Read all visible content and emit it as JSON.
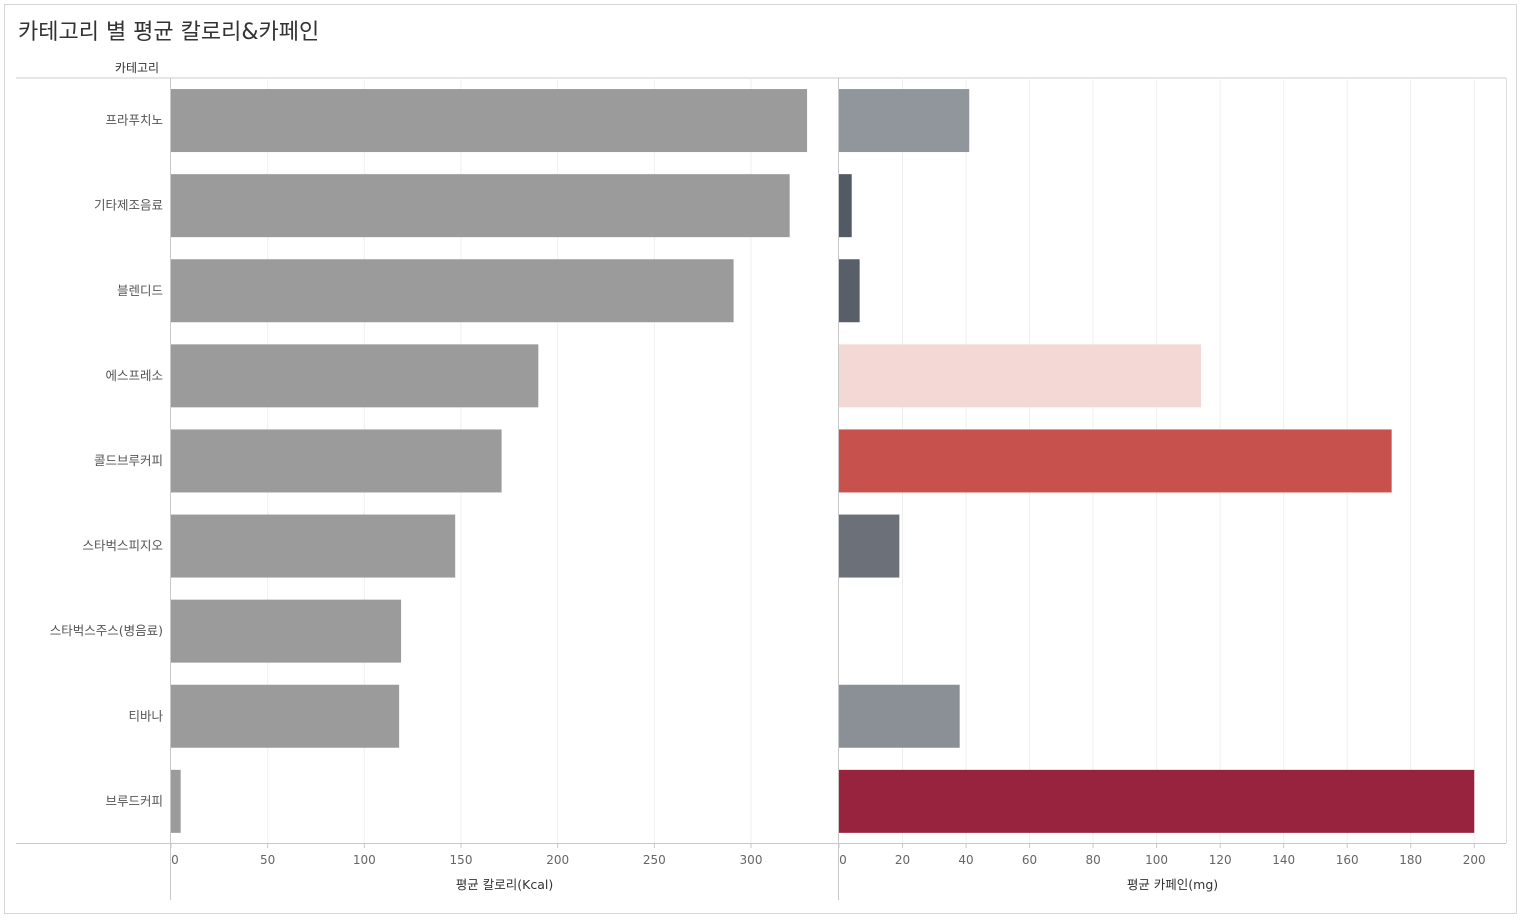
{
  "title": "카테고리 별 평균 칼로리&카페인",
  "chart_data": {
    "type": "bar",
    "orientation": "horizontal",
    "row_header": "카테고리",
    "categories": [
      "프라푸치노",
      "기타제조음료",
      "블렌디드",
      "에스프레소",
      "콜드브루커피",
      "스타벅스피지오",
      "스타벅스주스(병음료)",
      "티바나",
      "브루드커피"
    ],
    "panels": [
      {
        "name": "calories",
        "xlabel": "평균 칼로리(Kcal)",
        "xlim": [
          0,
          345
        ],
        "ticks": [
          0,
          50,
          100,
          150,
          200,
          250,
          300
        ],
        "values": [
          329,
          320,
          291,
          190,
          171,
          147,
          119,
          118,
          5
        ],
        "colors": [
          "#9b9b9b",
          "#9b9b9b",
          "#9b9b9b",
          "#9b9b9b",
          "#9b9b9b",
          "#9b9b9b",
          "#9b9b9b",
          "#9b9b9b",
          "#9b9b9b"
        ]
      },
      {
        "name": "caffeine",
        "xlabel": "평균 카페인(mg)",
        "xlim": [
          0,
          210
        ],
        "ticks": [
          0,
          20,
          40,
          60,
          80,
          100,
          120,
          140,
          160,
          180,
          200
        ],
        "values": [
          41,
          4,
          6.5,
          114,
          174,
          19,
          0,
          38,
          200
        ],
        "colors": [
          "#90969b",
          "#525a65",
          "#585f69",
          "#f3d8d6",
          "#c7524d",
          "#6b7079",
          "#ffffff",
          "#8a9095",
          "#98233e"
        ]
      }
    ]
  }
}
